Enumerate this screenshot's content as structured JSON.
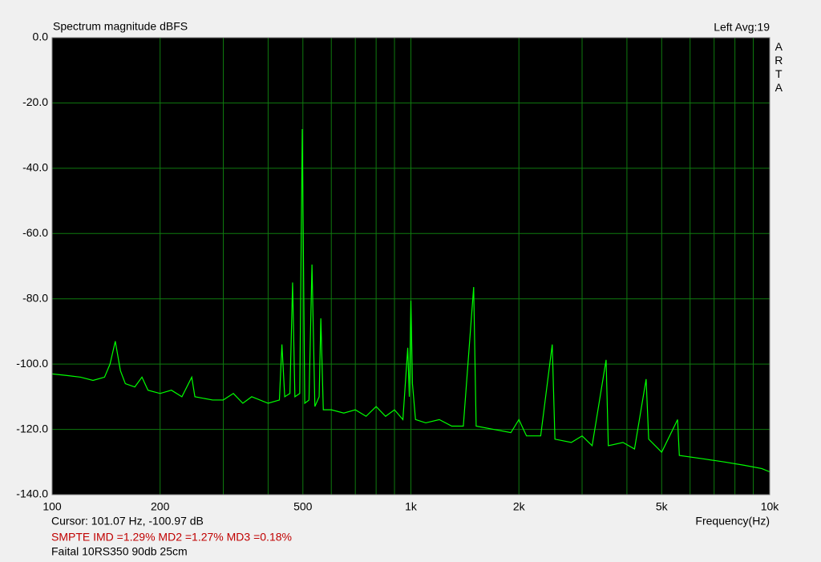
{
  "chart_data": {
    "type": "line",
    "title": "Spectrum magnitude dBFS",
    "header_right": "Left  Avg:19",
    "side_label": "ARTA",
    "x_label": "Frequency(Hz)",
    "cursor": "Cursor: 101.07 Hz, -100.97 dB",
    "imd": "SMPTE IMD =1.29%  MD2 =1.27%  MD3 =0.18%",
    "caption": "Faital 10RS350 90db 25cm",
    "xlog": true,
    "grid": true,
    "color": "#00ff00",
    "grid_color": "#0f7a0f",
    "xlim": [
      100,
      10000
    ],
    "ylim": [
      -140,
      0
    ],
    "xticks": [
      100,
      200,
      500,
      {
        "value": 1000,
        "label": "1k"
      },
      {
        "value": 2000,
        "label": "2k"
      },
      {
        "value": 5000,
        "label": "5k"
      },
      {
        "value": 10000,
        "label": "10k"
      }
    ],
    "xminor": [
      300,
      400,
      600,
      700,
      800,
      900,
      3000,
      4000,
      6000,
      7000,
      8000,
      9000
    ],
    "yticks": [
      {
        "value": 0,
        "label": "0.0"
      },
      {
        "value": -20,
        "label": "-20.0"
      },
      {
        "value": -40,
        "label": "-40.0"
      },
      {
        "value": -60,
        "label": "-60.0"
      },
      {
        "value": -80,
        "label": "-80.0"
      },
      {
        "value": -100,
        "label": "-100.0"
      },
      {
        "value": -120,
        "label": "-120.0"
      },
      {
        "value": -140,
        "label": "-140.0"
      }
    ],
    "x": [
      100,
      110,
      120,
      130,
      140,
      145,
      150,
      155,
      160,
      170,
      178,
      185,
      200,
      215,
      230,
      245,
      250,
      280,
      300,
      320,
      340,
      360,
      400,
      430,
      437,
      445,
      460,
      468,
      475,
      490,
      498,
      506,
      520,
      530,
      540,
      555,
      561,
      570,
      600,
      650,
      700,
      750,
      800,
      850,
      900,
      950,
      980,
      990,
      1000,
      1010,
      1030,
      1100,
      1200,
      1300,
      1400,
      1496,
      1520,
      1700,
      1900,
      2000,
      2100,
      2300,
      2477,
      2520,
      2800,
      3000,
      3200,
      3500,
      3550,
      3900,
      4200,
      4525,
      4600,
      5000,
      5537,
      5600,
      6500,
      7500,
      8500,
      9500,
      10000
    ],
    "values": [
      -103,
      -103.5,
      -104,
      -105,
      -104,
      -100,
      -93,
      -102,
      -106,
      -107,
      -104,
      -108,
      -109,
      -108,
      -110,
      -104,
      -110,
      -111,
      -111,
      -109,
      -112,
      -110,
      -112,
      -111,
      -94,
      -110,
      -109,
      -75,
      -110,
      -109,
      -28,
      -112,
      -111,
      -69.5,
      -113,
      -110,
      -86,
      -114,
      -114,
      -115,
      -114,
      -116,
      -113,
      -116,
      -114,
      -117,
      -95,
      -110,
      -80.6,
      -106,
      -117,
      -118,
      -117,
      -119,
      -119,
      -76.4,
      -119,
      -120,
      -121,
      -117,
      -122,
      -122,
      -94,
      -123,
      -124,
      -122,
      -125,
      -98.7,
      -125,
      -124,
      -126,
      -104.6,
      -123,
      -127,
      -117,
      -128,
      -129,
      -130,
      -131,
      -132,
      -133
    ]
  }
}
